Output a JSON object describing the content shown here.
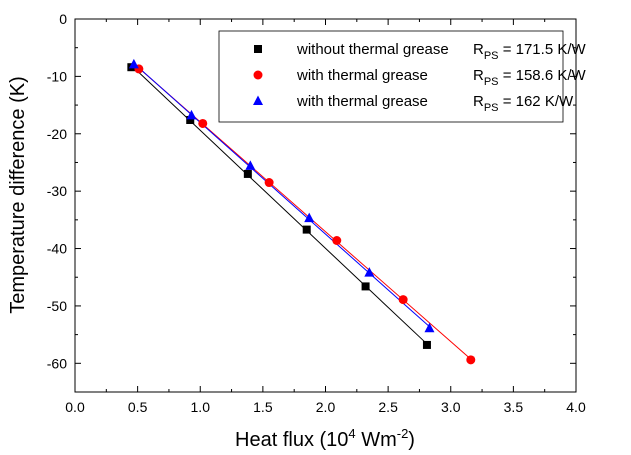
{
  "chart_data": {
    "type": "scatter",
    "title": "",
    "xlabel": "Heat flux (10",
    "xlabel_sup": "4",
    "xlabel_tail": " Wm",
    "xlabel_sup2": "-2",
    "xlabel_end": ")",
    "ylabel": "Temperature difference (K)",
    "xlim": [
      0.0,
      4.0
    ],
    "ylim": [
      -65,
      0
    ],
    "x_ticks": [
      0.0,
      0.5,
      1.0,
      1.5,
      2.0,
      2.5,
      3.0,
      3.5,
      4.0
    ],
    "x_tick_labels": [
      "0.0",
      "0.5",
      "1.0",
      "1.5",
      "2.0",
      "2.5",
      "3.0",
      "3.5",
      "4.0"
    ],
    "y_ticks": [
      0,
      -10,
      -20,
      -30,
      -40,
      -50,
      -60
    ],
    "y_tick_labels": [
      "0",
      "-10",
      "-20",
      "-30",
      "-40",
      "-50",
      "-60"
    ],
    "grid": false,
    "legend_position": "top-right",
    "series": [
      {
        "name": "without thermal grease",
        "marker": "square",
        "color": "#000000",
        "resistance_prefix": "R",
        "resistance_sub": "PS",
        "resistance_value": " = 171.5 K/W",
        "x": [
          0.45,
          0.92,
          1.38,
          1.85,
          2.32,
          2.81
        ],
        "y": [
          -8.4,
          -17.6,
          -27.0,
          -36.7,
          -46.6,
          -56.8
        ]
      },
      {
        "name": "with thermal grease",
        "marker": "circle",
        "color": "#ff0000",
        "resistance_prefix": "R",
        "resistance_sub": "PS",
        "resistance_value": " = 158.6 K/W",
        "x": [
          0.51,
          1.02,
          1.55,
          2.09,
          2.62,
          3.16
        ],
        "y": [
          -8.7,
          -18.2,
          -28.5,
          -38.6,
          -48.9,
          -59.4
        ]
      },
      {
        "name": "with thermal grease",
        "marker": "triangle",
        "color": "#0000ff",
        "resistance_prefix": "R",
        "resistance_sub": "PS",
        "resistance_value": " = 162 K/W",
        "x": [
          0.47,
          0.93,
          1.4,
          1.87,
          2.35,
          2.83
        ],
        "y": [
          -7.9,
          -16.8,
          -25.6,
          -34.7,
          -44.2,
          -53.9
        ]
      }
    ]
  }
}
